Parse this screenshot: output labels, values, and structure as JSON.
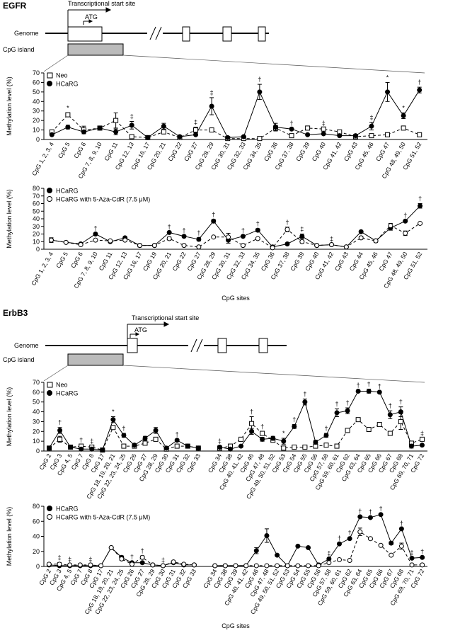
{
  "panels": [
    {
      "title": "EGFR",
      "diagram": {
        "tss_label": "Transcriptional start site",
        "atg_label": "ATG",
        "genome_label": "Genome",
        "cpg_island_label": "CpG island"
      }
    },
    {
      "title": "ErbB3",
      "diagram": {
        "tss_label": "Transcriptional start site",
        "atg_label": "ATG",
        "genome_label": "Genome",
        "cpg_island_label": "CpG island"
      }
    }
  ],
  "chart_data": [
    {
      "type": "line",
      "y_label": "Methylation level (%)",
      "ylim": [
        0,
        70
      ],
      "yticks": [
        0,
        10,
        20,
        30,
        40,
        50,
        60,
        70
      ],
      "categories": [
        "CpG 1, 2, 3, 4",
        "CpG 5",
        "CpG 6",
        "CpG 7, 8, 9, 10",
        "CpG 11",
        "CpG 12, 13",
        "CpG 16, 17",
        "CpG 20, 21",
        "CpG 22",
        "CpG 27",
        "CpG 28, 29",
        "CpG 30, 31",
        "CpG 32, 33",
        "CpG 34, 35",
        "CpG 36",
        "CpG 37, 38",
        "CpG 39",
        "CpG 40",
        "CpG 41, 42",
        "CpG 43",
        "CpG 45, 46",
        "CpG 47",
        "CpG 48, 49, 50",
        "CpG 51, 52"
      ],
      "annotations": [
        null,
        "*",
        null,
        null,
        null,
        "‡",
        null,
        null,
        null,
        "‡",
        "‡",
        null,
        null,
        "†",
        null,
        "†",
        null,
        "‡",
        null,
        null,
        "‡",
        "*",
        "*",
        "†"
      ],
      "series": [
        {
          "name": "Neo",
          "marker": "square",
          "color": "#000000",
          "fill": "#ffffff",
          "dashed": true,
          "values": [
            8,
            26,
            10,
            12,
            20,
            3,
            2,
            8,
            2,
            10,
            10,
            1,
            1,
            1,
            12,
            4,
            12,
            11,
            8,
            3,
            4,
            5,
            12,
            5
          ],
          "errors": [
            1,
            2,
            4,
            1,
            8,
            1,
            1,
            1,
            1,
            3,
            2,
            1,
            1,
            1,
            3,
            1,
            2,
            1,
            1,
            1,
            1,
            2,
            1,
            1
          ]
        },
        {
          "name": "HCaRG",
          "marker": "circle",
          "color": "#000000",
          "fill": "#000000",
          "dashed": false,
          "values": [
            5,
            13,
            8,
            12,
            8,
            15,
            2,
            14,
            3,
            5,
            35,
            2,
            3,
            50,
            13,
            11,
            5,
            6,
            4,
            4,
            14,
            50,
            25,
            52
          ],
          "errors": [
            1,
            2,
            1,
            2,
            3,
            4,
            1,
            3,
            1,
            1,
            9,
            1,
            1,
            8,
            4,
            1,
            1,
            1,
            1,
            1,
            4,
            10,
            3,
            3
          ]
        }
      ]
    },
    {
      "type": "line",
      "y_label": "Methylation level (%)",
      "x_label": "CpG sites",
      "ylim": [
        0,
        80
      ],
      "yticks": [
        0,
        10,
        20,
        30,
        40,
        50,
        60,
        70,
        80
      ],
      "categories": [
        "CpG 1, 2, 3, 4",
        "CpG 5",
        "CpG 6",
        "CpG 7, 8, 9, 10",
        "CpG 11",
        "CpG 12, 13",
        "CpG 16, 17",
        "CpG 19",
        "CpG 20, 21",
        "CpG 22",
        "CpG 27",
        "CpG 28, 29",
        "CpG 30, 31",
        "CpG 32, 33",
        "CpG 34, 35",
        "CpG 36",
        "CpG 37, 38",
        "CpG 39",
        "CpG 40",
        "CpG 41, 42",
        "CpG 43",
        "CpG 44",
        "CpG 45, 46",
        "CpG 47",
        "CpG 48, 49, 50",
        "CpG 51, 52"
      ],
      "annotations": [
        null,
        null,
        null,
        "†",
        null,
        null,
        null,
        null,
        "†",
        "†",
        "†",
        "†",
        null,
        "†",
        "†",
        null,
        "†",
        "‡",
        null,
        "‡",
        null,
        null,
        null,
        null,
        "†",
        "†"
      ],
      "series": [
        {
          "name": "HCaRG",
          "marker": "circle",
          "color": "#000000",
          "fill": "#000000",
          "dashed": false,
          "values": [
            12,
            9,
            7,
            20,
            10,
            15,
            5,
            5,
            22,
            17,
            13,
            37,
            12,
            17,
            25,
            3,
            7,
            17,
            5,
            6,
            3,
            23,
            11,
            28,
            37,
            57
          ],
          "errors": [
            3,
            1,
            1,
            1,
            1,
            1,
            2,
            1,
            1,
            1,
            2,
            2,
            4,
            1,
            2,
            1,
            1,
            3,
            1,
            1,
            1,
            1,
            2,
            3,
            1,
            3
          ]
        },
        {
          "name": "HCaRG with 5-Aza-CdR (7.5 μM)",
          "marker": "circle",
          "color": "#000000",
          "fill": "#ffffff",
          "dashed": true,
          "values": [
            12,
            9,
            6,
            12,
            11,
            12,
            5,
            5,
            14,
            5,
            3,
            16,
            16,
            5,
            14,
            2,
            26,
            10,
            5,
            6,
            3,
            15,
            11,
            31,
            21,
            34
          ],
          "errors": [
            3,
            1,
            1,
            1,
            1,
            1,
            1,
            1,
            2,
            1,
            1,
            1,
            5,
            1,
            1,
            1,
            3,
            2,
            1,
            1,
            1,
            2,
            1,
            3,
            3,
            1
          ]
        }
      ]
    },
    {
      "type": "line",
      "y_label": "Methylation level (%)",
      "ylim": [
        0,
        70
      ],
      "yticks": [
        0,
        10,
        20,
        30,
        40,
        50,
        60,
        70
      ],
      "categories": [
        "CpG 2",
        "CpG 3",
        "CpG 4, 5",
        "CpG 7",
        "CpG 8",
        "CpG 17",
        "CpG 18, 19, 20, 21",
        "CpG 22, 23, 24, 25",
        "CpG 26",
        "CpG 27",
        "CpG 28, 29",
        "CpG 30",
        "CpG 31",
        "CpG 32",
        "CpG 33",
        null,
        "CpG 34",
        "CpG 38",
        "CpG 40, 41, 42",
        "CpG 46",
        "CpG 47, 48",
        "CpG 49, 50, 51, 52",
        "CpG 53",
        "CpG 54",
        "CpG 55",
        "CpG 56",
        "CpG 57, 58",
        "CpG 59, 60, 61",
        "CpG 62",
        "CpG 63, 64",
        "CpG 65",
        "CpG 66",
        "CpG 67",
        "CpG 68",
        "CpG 69, 70, 71",
        "CpG 72"
      ],
      "annotations": [
        null,
        "†",
        null,
        "†",
        "‡",
        null,
        "*",
        "†",
        null,
        null,
        null,
        null,
        "†",
        null,
        null,
        null,
        "‡",
        null,
        null,
        "†",
        "†",
        null,
        "*",
        "†",
        "†",
        null,
        "†",
        "†",
        "†",
        "†",
        "†",
        "†",
        "†",
        "†",
        null,
        "‡"
      ],
      "series": [
        {
          "name": "Neo",
          "marker": "square",
          "color": "#000000",
          "fill": "#ffffff",
          "dashed": true,
          "values": [
            3,
            12,
            4,
            5,
            4,
            1,
            24,
            5,
            5,
            8,
            12,
            2,
            5,
            5,
            3,
            null,
            3,
            5,
            12,
            28,
            18,
            11,
            3,
            4,
            4,
            5,
            6,
            5,
            21,
            32,
            22,
            27,
            18,
            30,
            8,
            12
          ],
          "errors": [
            1,
            3,
            1,
            1,
            1,
            1,
            2,
            1,
            1,
            1,
            2,
            1,
            1,
            1,
            1,
            null,
            1,
            1,
            2,
            7,
            2,
            2,
            1,
            1,
            1,
            1,
            1,
            1,
            2,
            1,
            2,
            1,
            1,
            8,
            1,
            1
          ]
        },
        {
          "name": "HCaRG",
          "marker": "circle",
          "color": "#000000",
          "fill": "#000000",
          "dashed": false,
          "values": [
            3,
            21,
            4,
            2,
            2,
            1,
            32,
            16,
            6,
            13,
            21,
            3,
            11,
            5,
            3,
            null,
            4,
            2,
            5,
            20,
            12,
            13,
            10,
            25,
            50,
            9,
            16,
            39,
            41,
            61,
            61,
            60,
            37,
            40,
            5,
            6
          ],
          "errors": [
            1,
            3,
            1,
            1,
            1,
            1,
            3,
            2,
            1,
            2,
            3,
            1,
            1,
            1,
            1,
            null,
            1,
            1,
            1,
            3,
            2,
            2,
            3,
            2,
            3,
            2,
            2,
            4,
            3,
            1,
            2,
            1,
            4,
            5,
            2,
            1
          ]
        }
      ]
    },
    {
      "type": "line",
      "y_label": "Methylation level (%)",
      "x_label": "CpG sites",
      "ylim": [
        0,
        80
      ],
      "yticks": [
        0,
        20,
        40,
        60,
        80
      ],
      "categories": [
        "CpG 2",
        "CpG 3",
        "CpG 4, 5",
        "CpG 7",
        "CpG 8",
        "CpG 17",
        "CpG 18, 19, 20, 21",
        "CpG 22, 23, 24, 25",
        "CpG 26",
        "CpG 27",
        "CpG 28, 29",
        "CpG 30",
        "CpG 31",
        "CpG 32",
        "CpG 33",
        null,
        "CpG 34",
        "CpG 38",
        "CpG 39",
        "CpG 40, 41, 42",
        "CpG 46",
        "CpG 47, 48",
        "CpG 49, 50, 51, 52",
        "CpG 53",
        "CpG 54",
        "CpG 55",
        "CpG 56",
        "CpG 57, 58",
        "CpG 59, 60, 61",
        "CpG 62",
        "CpG 63, 64",
        "CpG 65",
        "CpG 66",
        "CpG 67",
        "CpG 68",
        "CpG 69, 70, 71",
        "CpG 72"
      ],
      "annotations": [
        null,
        "‡",
        "‡",
        null,
        "‡",
        null,
        null,
        null,
        "†",
        "†",
        null,
        "‡",
        null,
        null,
        null,
        null,
        null,
        null,
        null,
        null,
        null,
        null,
        null,
        null,
        null,
        null,
        null,
        "‡",
        "†",
        "†",
        "†",
        "†",
        "†",
        null,
        "†",
        "‡",
        "†"
      ],
      "series": [
        {
          "name": "HCaRG",
          "marker": "circle",
          "color": "#000000",
          "fill": "#000000",
          "dashed": false,
          "values": [
            2,
            1,
            1,
            1,
            1,
            1,
            25,
            12,
            5,
            5,
            2,
            1,
            5,
            2,
            2,
            null,
            1,
            1,
            1,
            1,
            21,
            41,
            15,
            1,
            27,
            25,
            2,
            10,
            30,
            37,
            66,
            65,
            69,
            31,
            50,
            11,
            12
          ],
          "errors": [
            1,
            1,
            1,
            1,
            1,
            1,
            1,
            2,
            1,
            1,
            1,
            1,
            1,
            1,
            1,
            null,
            1,
            1,
            1,
            1,
            4,
            9,
            1,
            1,
            1,
            1,
            1,
            1,
            1,
            1,
            1,
            1,
            1,
            2,
            1,
            1,
            1
          ]
        },
        {
          "name": "HCaRG with 5-Aza-CdR (7.5 μM)",
          "marker": "circle",
          "color": "#000000",
          "fill": "#ffffff",
          "dashed": true,
          "values": [
            3,
            3,
            2,
            2,
            2,
            1,
            25,
            10,
            3,
            12,
            2,
            1,
            6,
            3,
            2,
            null,
            1,
            1,
            1,
            1,
            1,
            1,
            1,
            1,
            1,
            1,
            1,
            5,
            9,
            8,
            46,
            37,
            28,
            15,
            27,
            2,
            2
          ],
          "errors": [
            1,
            2,
            1,
            1,
            1,
            1,
            1,
            2,
            1,
            2,
            1,
            1,
            1,
            1,
            1,
            null,
            1,
            1,
            1,
            1,
            1,
            1,
            1,
            1,
            1,
            1,
            1,
            1,
            1,
            1,
            5,
            1,
            1,
            1,
            4,
            1,
            1
          ]
        }
      ]
    }
  ]
}
